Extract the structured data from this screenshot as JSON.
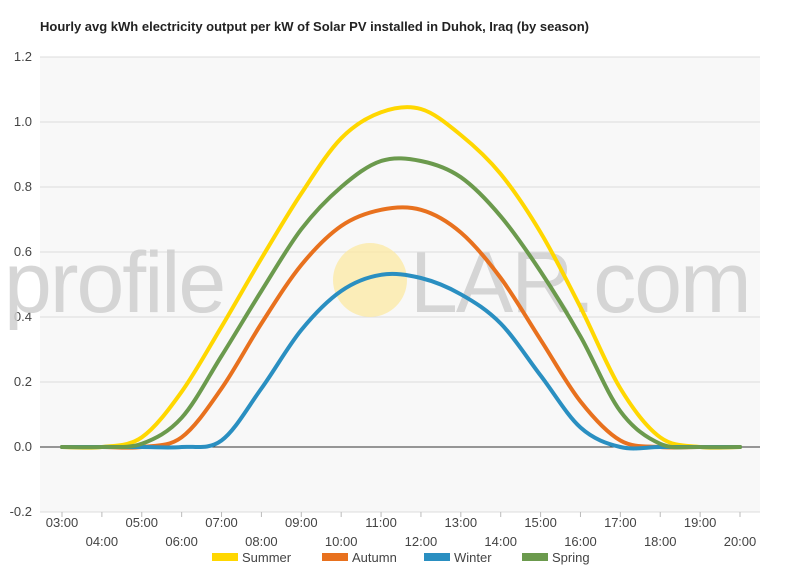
{
  "chart_data": {
    "type": "line",
    "title": "Hourly avg kWh electricity output per kW of Solar PV installed in Duhok, Iraq (by season)",
    "xlabel": "",
    "ylabel": "",
    "ylim": [
      -0.2,
      1.2
    ],
    "y_ticks": [
      "-0.2",
      "0.0",
      "0.2",
      "0.4",
      "0.6",
      "0.8",
      "1.0",
      "1.2"
    ],
    "x": [
      "03:00",
      "04:00",
      "05:00",
      "06:00",
      "07:00",
      "08:00",
      "09:00",
      "10:00",
      "11:00",
      "12:00",
      "13:00",
      "14:00",
      "15:00",
      "16:00",
      "17:00",
      "18:00",
      "19:00",
      "20:00"
    ],
    "grid": true,
    "legend_position": "bottom",
    "series": [
      {
        "name": "Summer",
        "color": "#ffd700",
        "values": [
          0,
          0,
          0.03,
          0.17,
          0.37,
          0.58,
          0.78,
          0.95,
          1.03,
          1.04,
          0.96,
          0.84,
          0.66,
          0.43,
          0.18,
          0.03,
          0,
          0
        ]
      },
      {
        "name": "Autumn",
        "color": "#e8711e",
        "values": [
          0,
          0,
          0,
          0.03,
          0.18,
          0.38,
          0.56,
          0.68,
          0.73,
          0.73,
          0.66,
          0.52,
          0.33,
          0.14,
          0.02,
          0,
          0,
          0
        ]
      },
      {
        "name": "Winter",
        "color": "#2a8fc1",
        "values": [
          0,
          0,
          0,
          0,
          0.02,
          0.18,
          0.36,
          0.48,
          0.53,
          0.52,
          0.47,
          0.38,
          0.22,
          0.06,
          0,
          0,
          0,
          0
        ]
      },
      {
        "name": "Spring",
        "color": "#6b9a4d",
        "values": [
          0,
          0,
          0.01,
          0.09,
          0.28,
          0.48,
          0.67,
          0.8,
          0.88,
          0.88,
          0.83,
          0.71,
          0.54,
          0.34,
          0.11,
          0.01,
          0,
          0
        ]
      }
    ]
  },
  "watermark": {
    "left": "profile",
    "right": "LAR.com",
    "sun_color": "#fde9a0"
  }
}
